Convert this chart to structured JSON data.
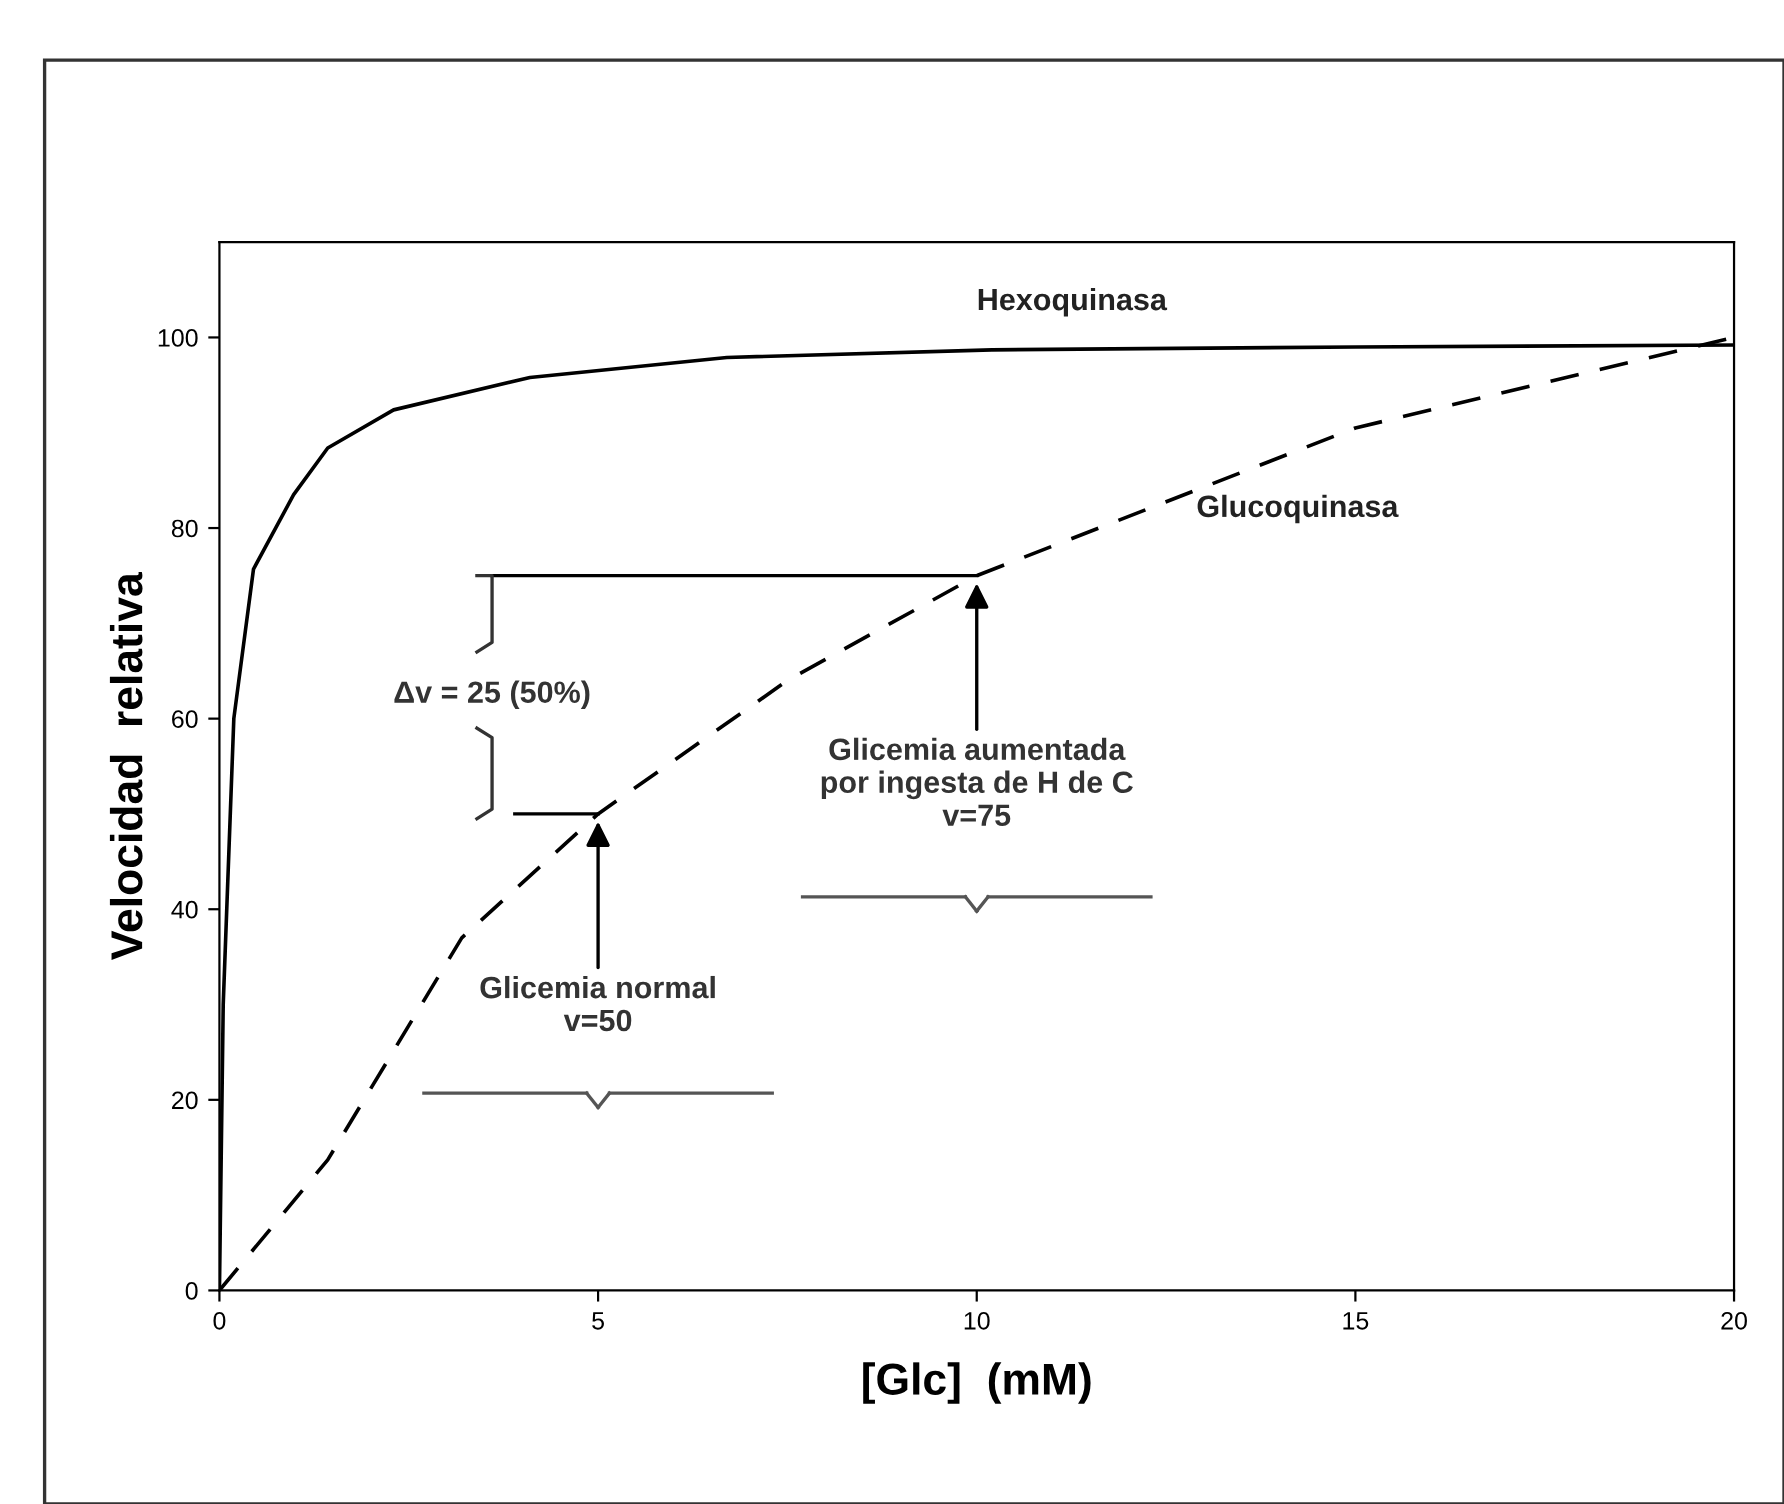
{
  "chart_data": {
    "type": "line",
    "xlabel": "[Glc]  (mM)",
    "ylabel": "Velocidad  relativa",
    "xlim": [
      0,
      20
    ],
    "ylim": [
      0,
      110
    ],
    "xticks": [
      0,
      5,
      10,
      15,
      20
    ],
    "yticks": [
      0,
      20,
      40,
      60,
      80,
      100
    ],
    "grid": false,
    "legend": false,
    "series": [
      {
        "name": "Hexoquinasa",
        "color": "#000000",
        "line_style": "solid",
        "x": [
          0,
          0.05,
          0.19,
          0.45,
          0.98,
          1.43,
          2.3,
          4.1,
          6.7,
          10.2,
          15,
          20
        ],
        "values": [
          0,
          30,
          60,
          75.7,
          83.5,
          88.4,
          92.4,
          95.8,
          97.9,
          98.7,
          99,
          99.2
        ]
      },
      {
        "name": "Glucoquinasa",
        "color": "#000000",
        "line_style": "dashed",
        "x": [
          0,
          1.43,
          3.2,
          5,
          7.5,
          10,
          15,
          20
        ],
        "values": [
          0,
          13.7,
          37,
          50,
          64,
          75,
          90.5,
          100
        ]
      }
    ],
    "annotations": [
      "Δv = 25 (50%)",
      {
        "text": "Glicemia normal\nv=50",
        "x": 5,
        "y": 50
      },
      {
        "text": "Glicemia aumentada\npor ingesta de H de C\nv=75",
        "x": 10,
        "y": 75
      }
    ]
  }
}
